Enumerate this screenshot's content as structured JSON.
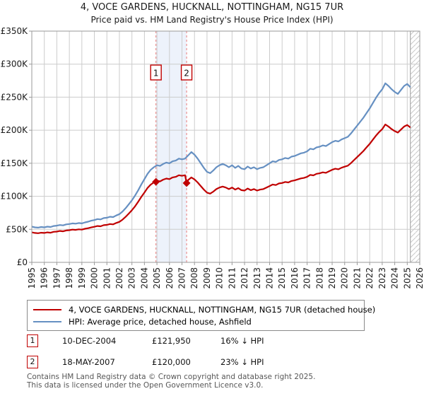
{
  "title": {
    "line1": "4, VOCE GARDENS, HUCKNALL, NOTTINGHAM, NG15 7UR",
    "line2": "Price paid vs. HM Land Registry's House Price Index (HPI)"
  },
  "legend": {
    "property": "4, VOCE GARDENS, HUCKNALL, NOTTINGHAM, NG15 7UR (detached house)",
    "hpi": "HPI: Average price, detached house, Ashfield"
  },
  "sales_table": [
    {
      "label": "1",
      "date": "10-DEC-2004",
      "price": "£121,950",
      "hpi_diff": "16% ↓ HPI"
    },
    {
      "label": "2",
      "date": "18-MAY-2007",
      "price": "£120,000",
      "hpi_diff": "23% ↓ HPI"
    }
  ],
  "footer": {
    "line1": "Contains HM Land Registry data © Crown copyright and database right 2025.",
    "line2": "This data is licensed under the Open Government Licence v3.0."
  },
  "colors": {
    "property_line": "#c00000",
    "hpi_line": "#6690c2",
    "band_fill": "#edf2fb",
    "dashed_line": "#e87c7c",
    "grid": "#cccccc",
    "spine": "#9a9a9a",
    "hatch": "#c9c9c9",
    "tick_text": "#1a1a1a"
  },
  "chart_data": {
    "type": "line",
    "x_start": 1995,
    "x_step": 0.25,
    "x_axis": {
      "range": [
        1995,
        2026
      ],
      "tick_labels": [
        "1995",
        "1996",
        "1997",
        "1998",
        "1999",
        "2000",
        "2001",
        "2002",
        "2003",
        "2004",
        "2005",
        "2006",
        "2007",
        "2008",
        "2009",
        "2010",
        "2011",
        "2012",
        "2013",
        "2014",
        "2015",
        "2016",
        "2017",
        "2018",
        "2019",
        "2020",
        "2021",
        "2022",
        "2023",
        "2024",
        "2025",
        "2026"
      ]
    },
    "y_axis": {
      "range": [
        0,
        350
      ],
      "unit": "£K",
      "tick_values": [
        0,
        50,
        100,
        150,
        200,
        250,
        300,
        350
      ],
      "tick_labels": [
        "£0",
        "£50K",
        "£100K",
        "£150K",
        "£200K",
        "£250K",
        "£300K",
        "£350K"
      ]
    },
    "band": [
      2004.92,
      2007.37
    ],
    "future_start": 2025.25,
    "grid": true,
    "series": [
      {
        "name": "HPI: Average price, detached house, Ashfield",
        "color": "#6690c2",
        "values": [
          54,
          53,
          52.5,
          53.5,
          53,
          54,
          53.5,
          55,
          55.5,
          56.5,
          56,
          57.5,
          58,
          59,
          58.5,
          59.5,
          59,
          60.5,
          61.5,
          63,
          64,
          65.5,
          65,
          67,
          67.5,
          69,
          68.5,
          71,
          73,
          77,
          82,
          88,
          94,
          101,
          109,
          118,
          126,
          134,
          140,
          144,
          147,
          146,
          149,
          151,
          150,
          153,
          154,
          157,
          156,
          157,
          162,
          167,
          163,
          157,
          150,
          143,
          137,
          135,
          139,
          144,
          147,
          149,
          147,
          144,
          147,
          143,
          146,
          142,
          141,
          145,
          142,
          144,
          141,
          143,
          144,
          147,
          150,
          153,
          152,
          155,
          156,
          158,
          157,
          160,
          161,
          163,
          165,
          166,
          168,
          172,
          171,
          174,
          175,
          177,
          176,
          179,
          182,
          184,
          183,
          186,
          188,
          190,
          195,
          201,
          207,
          213,
          219,
          226,
          233,
          241,
          249,
          256,
          262,
          271,
          267,
          262,
          258,
          255,
          261,
          267,
          270,
          265
        ]
      },
      {
        "name": "4, VOCE GARDENS, HUCKNALL, NOTTINGHAM, NG15 7UR (detached house)",
        "color": "#c00000",
        "values": [
          45.4,
          44.5,
          44.1,
          44.9,
          44.5,
          45.4,
          44.9,
          46.2,
          46.6,
          47.5,
          47,
          48.3,
          48.7,
          49.6,
          49.1,
          50,
          49.6,
          50.8,
          51.7,
          52.9,
          53.8,
          55,
          54.6,
          56.3,
          56.7,
          58,
          57.5,
          59.6,
          61.3,
          64.7,
          68.9,
          73.9,
          79,
          84.8,
          91.6,
          99.1,
          105.8,
          112.6,
          117.6,
          121,
          123.5,
          122.6,
          125.2,
          126.8,
          126,
          128.5,
          129.4,
          131.9,
          131,
          131.9,
          124.7,
          128.6,
          125.5,
          120.9,
          115.5,
          110.1,
          105.5,
          104,
          107,
          110.9,
          113.2,
          114.7,
          113.2,
          110.9,
          113.2,
          110.1,
          112.4,
          109.3,
          108.6,
          111.7,
          109.3,
          110.9,
          108.6,
          110.1,
          110.9,
          113.2,
          115.5,
          117.8,
          117,
          119.4,
          120.1,
          121.7,
          120.9,
          123.2,
          124,
          125.5,
          127.1,
          127.8,
          129.4,
          132.4,
          131.7,
          134,
          134.8,
          136.3,
          135.5,
          137.8,
          140.1,
          141.7,
          140.9,
          143.2,
          144.8,
          146.3,
          150.2,
          154.8,
          159.4,
          164,
          168.6,
          174,
          179.4,
          185.6,
          191.7,
          197.1,
          201.7,
          208.7,
          205.6,
          201.7,
          198.7,
          196.4,
          201,
          205.6,
          207.9,
          204.1
        ]
      }
    ],
    "sales": [
      {
        "label": "1",
        "x": 2004.92,
        "value": 121.95
      },
      {
        "label": "2",
        "x": 2007.37,
        "value": 120
      }
    ]
  }
}
